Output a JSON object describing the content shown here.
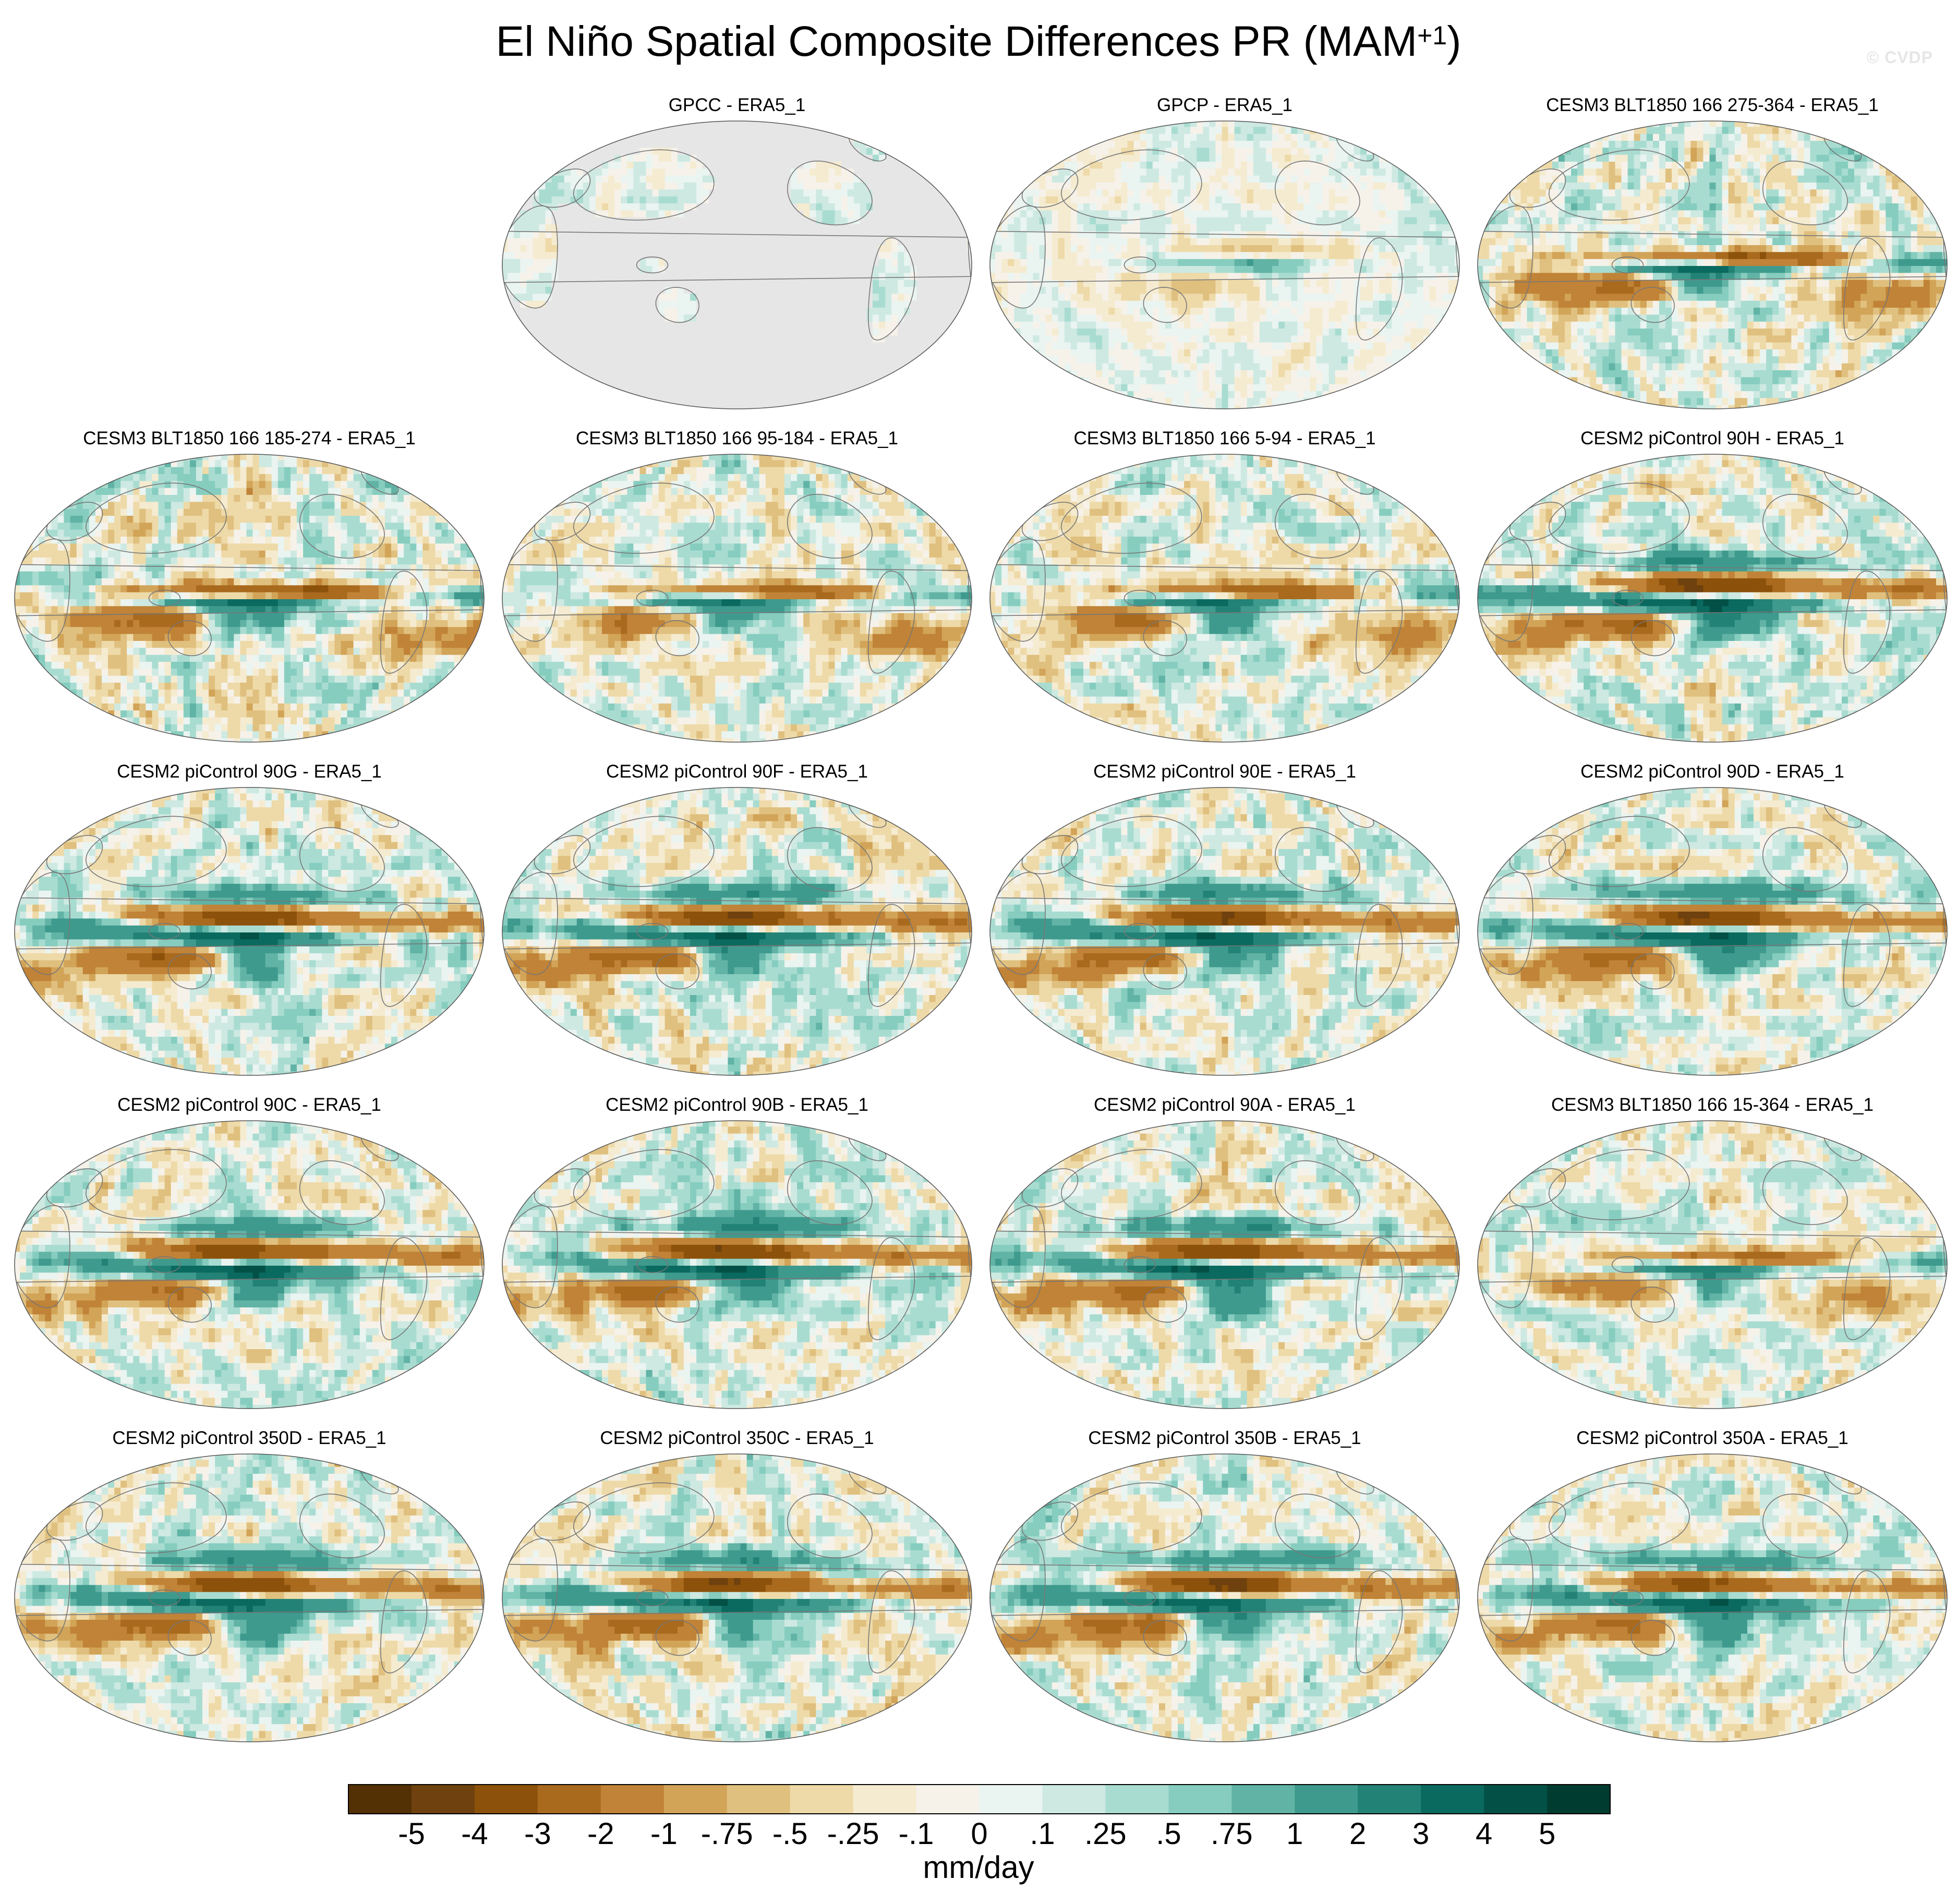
{
  "chart_data": {
    "type": "heatmap",
    "title": "El Niño Spatial Composite Differences PR (MAM",
    "title_superscript": "+1",
    "title_suffix": ")",
    "watermark": "© CVDP",
    "projection": "Robinson-like global maps centered on the Pacific",
    "panels": [
      {
        "name": "GPCC - ERA5_1",
        "pattern": "land",
        "amp": 0.5
      },
      {
        "name": "GPCP - ERA5_1",
        "pattern": "obs",
        "amp": 0.55
      },
      {
        "name": "CESM3 BLT1850 166 275-364 - ERA5_1",
        "pattern": "cesm3",
        "amp": 1.0
      },
      {
        "name": "CESM3 BLT1850 166 185-274 - ERA5_1",
        "pattern": "cesm3",
        "amp": 1.1
      },
      {
        "name": "CESM3 BLT1850 166 95-184 - ERA5_1",
        "pattern": "cesm3",
        "amp": 0.85
      },
      {
        "name": "CESM3 BLT1850 166 5-94 - ERA5_1",
        "pattern": "cesm3",
        "amp": 0.9
      },
      {
        "name": "CESM2 piControl 90H - ERA5_1",
        "pattern": "cesm2",
        "amp": 1.1
      },
      {
        "name": "CESM2 piControl 90G - ERA5_1",
        "pattern": "cesm2",
        "amp": 1.0
      },
      {
        "name": "CESM2 piControl 90F - ERA5_1",
        "pattern": "cesm2",
        "amp": 1.05
      },
      {
        "name": "CESM2 piControl 90E - ERA5_1",
        "pattern": "cesm2",
        "amp": 1.0
      },
      {
        "name": "CESM2 piControl 90D - ERA5_1",
        "pattern": "cesm2",
        "amp": 1.0
      },
      {
        "name": "CESM2 piControl 90C - ERA5_1",
        "pattern": "cesm2",
        "amp": 1.0
      },
      {
        "name": "CESM2 piControl 90B - ERA5_1",
        "pattern": "cesm2",
        "amp": 1.0
      },
      {
        "name": "CESM2 piControl 90A - ERA5_1",
        "pattern": "cesm2",
        "amp": 1.0
      },
      {
        "name": "CESM3 BLT1850 166 15-364 - ERA5_1",
        "pattern": "cesm3",
        "amp": 0.8
      },
      {
        "name": "CESM2 piControl 350D - ERA5_1",
        "pattern": "cesm2",
        "amp": 1.0
      },
      {
        "name": "CESM2 piControl 350C - ERA5_1",
        "pattern": "cesm2",
        "amp": 1.0
      },
      {
        "name": "CESM2 piControl 350B - ERA5_1",
        "pattern": "cesm2",
        "amp": 1.0
      },
      {
        "name": "CESM2 piControl 350A - ERA5_1",
        "pattern": "cesm2",
        "amp": 0.95
      }
    ],
    "colorbar": {
      "units": "mm/day",
      "levels": [
        "-5",
        "-4",
        "-3",
        "-2",
        "-1",
        "-.75",
        "-.5",
        "-.25",
        "-.1",
        "0",
        ".1",
        ".25",
        ".5",
        ".75",
        "1",
        "2",
        "3",
        "4",
        "5"
      ],
      "level_values": [
        -5,
        -4,
        -3,
        -2,
        -1,
        -0.75,
        -0.5,
        -0.25,
        -0.1,
        0,
        0.1,
        0.25,
        0.5,
        0.75,
        1,
        2,
        3,
        4,
        5
      ],
      "colors": [
        "#543005",
        "#6e410e",
        "#8c510a",
        "#a96a1e",
        "#c08337",
        "#d2a458",
        "#e0c07f",
        "#eedaa8",
        "#f5ebd0",
        "#f6f2ea",
        "#eaf4f1",
        "#cde9e2",
        "#a9dcd1",
        "#86cdbf",
        "#61b3a5",
        "#3f9a8e",
        "#238276",
        "#0b6a5f",
        "#035146",
        "#003c30"
      ]
    },
    "missing_color": "#e6e6e6",
    "coast_color": "#777777"
  }
}
